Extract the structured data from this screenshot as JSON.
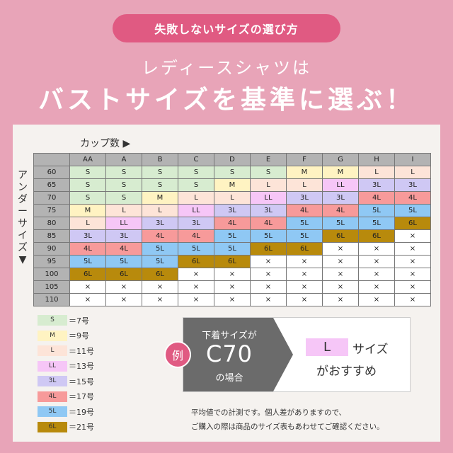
{
  "header": {
    "pill": "失敗しないサイズの選び方",
    "subtitle": "レディースシャツは",
    "main_title": "バストサイズを基準に選ぶ！"
  },
  "chart": {
    "cup_label": "カップ数 ▶",
    "under_label": "アンダーサイズ▼",
    "columns": [
      "AA",
      "A",
      "B",
      "C",
      "D",
      "E",
      "F",
      "G",
      "H",
      "I"
    ],
    "rows": [
      {
        "label": "60",
        "cells": [
          "S",
          "S",
          "S",
          "S",
          "S",
          "S",
          "M",
          "M",
          "L",
          "L"
        ]
      },
      {
        "label": "65",
        "cells": [
          "S",
          "S",
          "S",
          "S",
          "M",
          "L",
          "L",
          "LL",
          "3L",
          "3L"
        ]
      },
      {
        "label": "70",
        "cells": [
          "S",
          "S",
          "M",
          "L",
          "L",
          "LL",
          "3L",
          "3L",
          "4L",
          "4L"
        ]
      },
      {
        "label": "75",
        "cells": [
          "M",
          "L",
          "L",
          "LL",
          "3L",
          "3L",
          "4L",
          "4L",
          "5L",
          "5L"
        ]
      },
      {
        "label": "80",
        "cells": [
          "L",
          "LL",
          "3L",
          "3L",
          "4L",
          "4L",
          "5L",
          "5L",
          "5L",
          "6L"
        ]
      },
      {
        "label": "85",
        "cells": [
          "3L",
          "3L",
          "4L",
          "4L",
          "5L",
          "5L",
          "5L",
          "6L",
          "6L",
          "×"
        ]
      },
      {
        "label": "90",
        "cells": [
          "4L",
          "4L",
          "5L",
          "5L",
          "5L",
          "6L",
          "6L",
          "×",
          "×",
          "×"
        ]
      },
      {
        "label": "95",
        "cells": [
          "5L",
          "5L",
          "5L",
          "6L",
          "6L",
          "×",
          "×",
          "×",
          "×",
          "×"
        ]
      },
      {
        "label": "100",
        "cells": [
          "6L",
          "6L",
          "6L",
          "×",
          "×",
          "×",
          "×",
          "×",
          "×",
          "×"
        ]
      },
      {
        "label": "105",
        "cells": [
          "×",
          "×",
          "×",
          "×",
          "×",
          "×",
          "×",
          "×",
          "×",
          "×"
        ]
      },
      {
        "label": "110",
        "cells": [
          "×",
          "×",
          "×",
          "×",
          "×",
          "×",
          "×",
          "×",
          "×",
          "×"
        ]
      }
    ]
  },
  "legend": [
    {
      "size": "S",
      "label": "＝7号",
      "color": "#d7ecd0"
    },
    {
      "size": "M",
      "label": "＝9号",
      "color": "#fff3c2"
    },
    {
      "size": "L",
      "label": "＝11号",
      "color": "#fde4d8"
    },
    {
      "size": "LL",
      "label": "＝13号",
      "color": "#f6c6f7"
    },
    {
      "size": "3L",
      "label": "＝15号",
      "color": "#cfc8f4"
    },
    {
      "size": "4L",
      "label": "＝17号",
      "color": "#f79a9a"
    },
    {
      "size": "5L",
      "label": "＝19号",
      "color": "#8fc8f4"
    },
    {
      "size": "6L",
      "label": "＝21号",
      "color": "#b88a0c"
    }
  ],
  "example": {
    "badge": "例",
    "line1": "下着サイズが",
    "size": "C70",
    "line3": "の場合",
    "recommend_size": "L",
    "recommend_suffix": "サイズ",
    "recommend_line2": "がおすすめ"
  },
  "note": {
    "line1": "平均値での計測です。個人差がありますので、",
    "line2": "ご購入の際は商品のサイズ表もあわせてご確認ください。"
  },
  "colors": {
    "background": "#e8a4b8",
    "accent": "#e05a82",
    "panel": "#f5f2ef",
    "header_cell": "#b3b3b3"
  }
}
